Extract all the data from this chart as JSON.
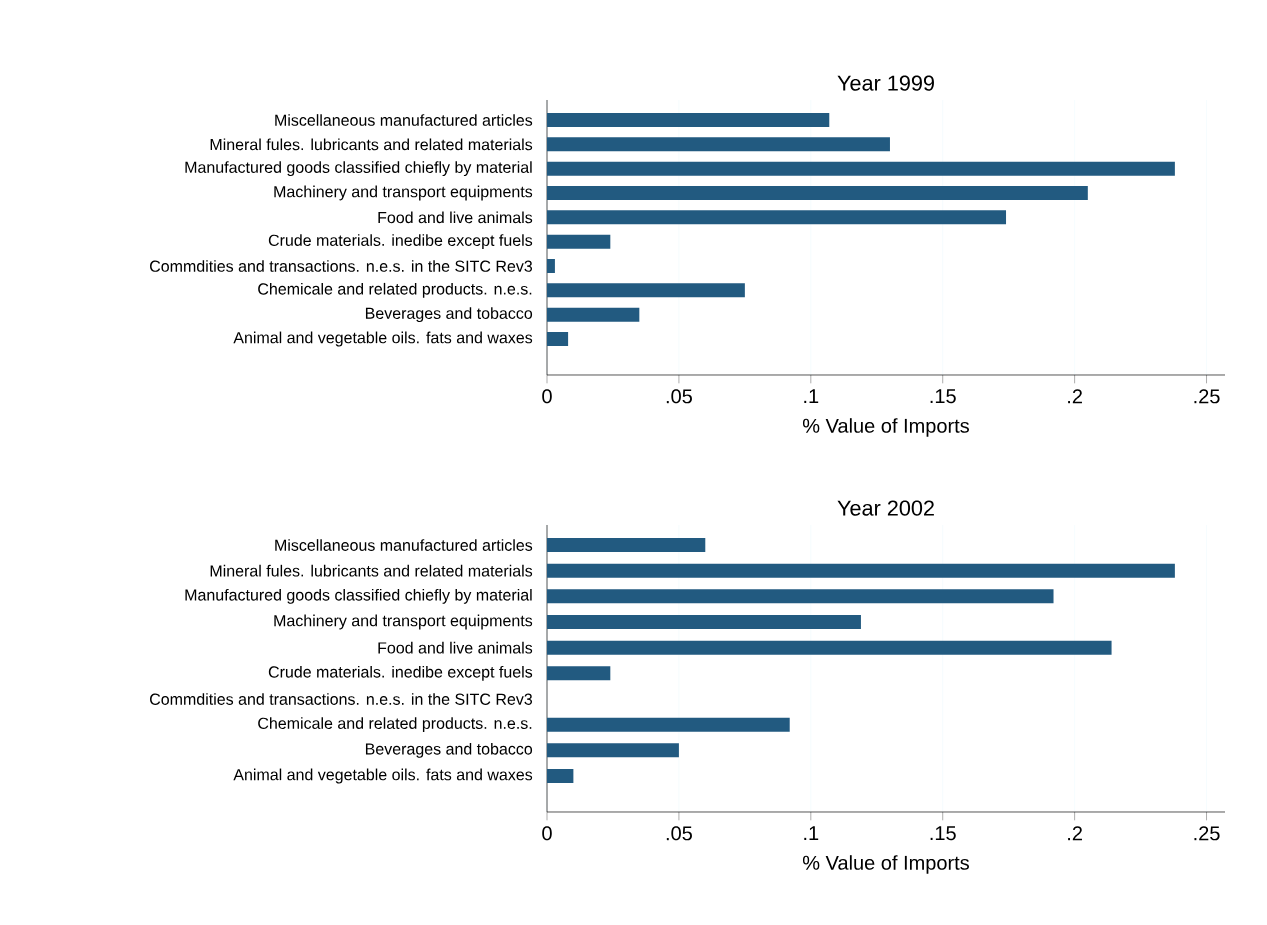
{
  "chart_data": [
    {
      "type": "bar",
      "orientation": "horizontal",
      "title": "Year 1999",
      "xlabel": "% Value of Imports",
      "categories": [
        "Miscellaneous manufactured articles",
        "Mineral fules. lubricants and related materials",
        "Manufactured goods classified chiefly by material",
        "Machinery and transport equipments",
        "Food and live animals",
        "Crude materials. inedibe except fuels",
        "Commdities and transactions. n.e.s. in the SITC Rev3",
        "Chemicale and related products. n.e.s.",
        "Beverages and tobacco",
        "Animal and vegetable oils. fats and waxes"
      ],
      "values": [
        0.107,
        0.13,
        0.238,
        0.205,
        0.174,
        0.024,
        0.003,
        0.075,
        0.035,
        0.008
      ],
      "color": "#225a80",
      "xlim": [
        0,
        0.257
      ],
      "xticks": [
        0,
        {
          "value": 0.05,
          "label": ".05"
        },
        {
          "value": 0.1,
          "label": ".1"
        },
        {
          "value": 0.15,
          "label": ".15"
        },
        {
          "value": 0.2,
          "label": ".2"
        },
        {
          "value": 0.25,
          "label": ".25"
        }
      ],
      "grid": "x"
    },
    {
      "type": "bar",
      "orientation": "horizontal",
      "title": "Year 2002",
      "xlabel": "% Value of Imports",
      "categories": [
        "Miscellaneous manufactured articles",
        "Mineral fules. lubricants and related materials",
        "Manufactured goods classified chiefly by material",
        "Machinery and transport equipments",
        "Food and live animals",
        "Crude materials. inedibe except fuels",
        "Commdities and transactions. n.e.s. in the SITC Rev3",
        "Chemicale and related products. n.e.s.",
        "Beverages and tobacco",
        "Animal and vegetable oils. fats and waxes"
      ],
      "values": [
        0.06,
        0.238,
        0.192,
        0.119,
        0.214,
        0.024,
        0,
        0.092,
        0.05,
        0.01
      ],
      "color": "#225a80",
      "xlim": [
        0,
        0.257
      ],
      "xticks": [
        0,
        {
          "value": 0.05,
          "label": ".05"
        },
        {
          "value": 0.1,
          "label": ".1"
        },
        {
          "value": 0.15,
          "label": ".15"
        },
        {
          "value": 0.2,
          "label": ".2"
        },
        {
          "value": 0.25,
          "label": ".25"
        }
      ],
      "grid": "x"
    }
  ]
}
